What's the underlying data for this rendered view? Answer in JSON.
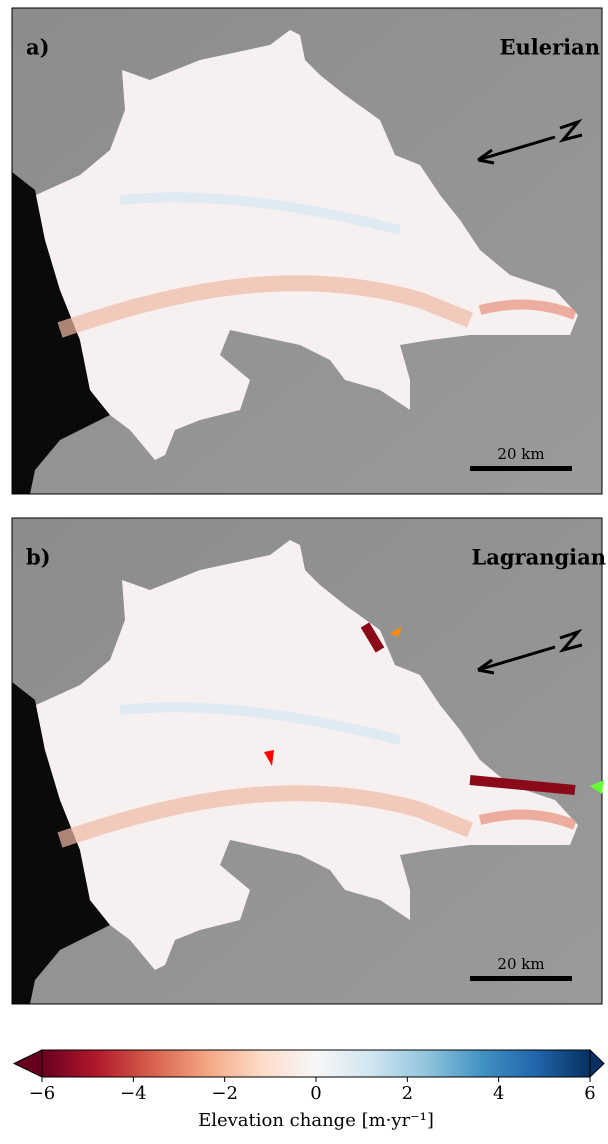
{
  "panels": [
    {
      "label": "a)",
      "title": "Eulerian",
      "scale_bar": "20 km"
    },
    {
      "label": "b)",
      "title": "Lagrangian",
      "scale_bar": "20 km"
    }
  ],
  "colorbar": {
    "lim": [
      -6,
      6
    ],
    "ticks": [
      {
        "value": -6,
        "label": "−6"
      },
      {
        "value": -4,
        "label": "−4"
      },
      {
        "value": -2,
        "label": "−2"
      },
      0,
      2,
      4,
      6
    ],
    "label": "Elevation change [m·yr⁻¹]",
    "colors": [
      "#67001f",
      "#b2182b",
      "#d6604d",
      "#f4a582",
      "#fddbc7",
      "#f7f7f7",
      "#d1e5f0",
      "#92c5de",
      "#4393c3",
      "#2166ac",
      "#053061"
    ]
  }
}
